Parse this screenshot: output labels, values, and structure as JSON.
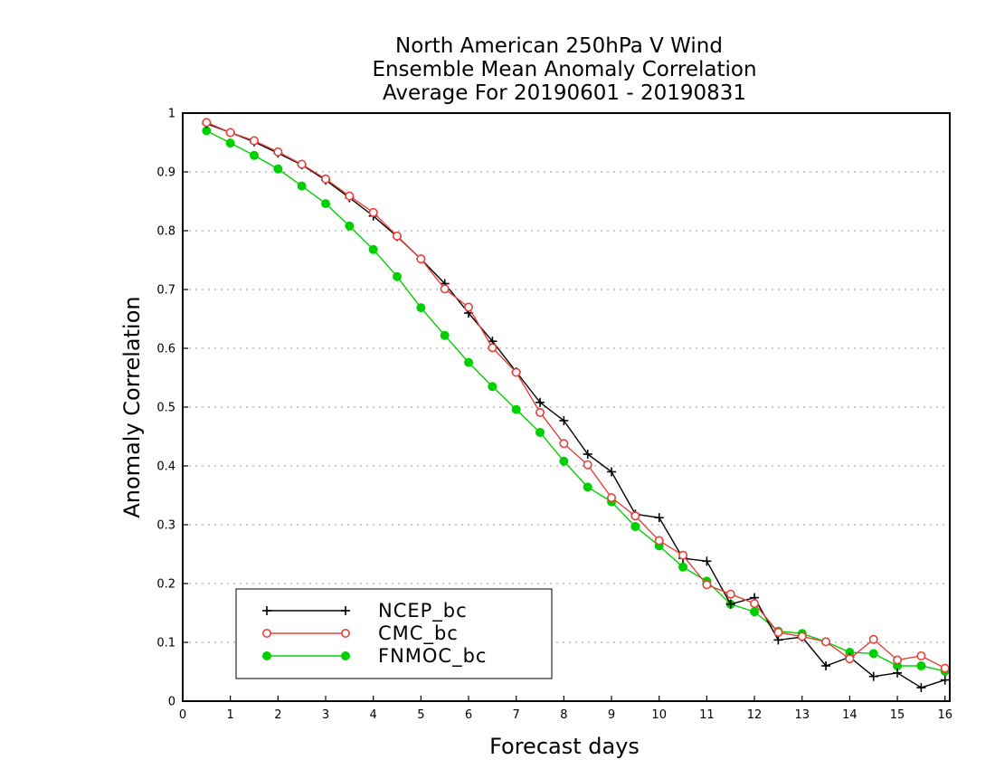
{
  "chart_data": {
    "type": "line",
    "title_lines": [
      "North American 250hPa V Wind",
      "Ensemble Mean Anomaly Correlation",
      "Average For 20190601 - 20190831"
    ],
    "xlabel": "Forecast days",
    "ylabel": "Anomaly Correlation",
    "xlim": [
      0,
      16.1
    ],
    "ylim": [
      0,
      1
    ],
    "xticks": [
      0,
      1,
      2,
      3,
      4,
      5,
      6,
      7,
      8,
      9,
      10,
      11,
      12,
      13,
      14,
      15,
      16
    ],
    "yticks": [
      0,
      0.1,
      0.2,
      0.3,
      0.4,
      0.5,
      0.6,
      0.7,
      0.8,
      0.9,
      1
    ],
    "ytick_labels": [
      "0",
      "0.1",
      "0.2",
      "0.3",
      "0.4",
      "0.5",
      "0.6",
      "0.7",
      "0.8",
      "0.9",
      "1"
    ],
    "grid": "horizontal dotted",
    "legend_position": "bottom-left",
    "x": [
      0.5,
      1,
      1.5,
      2,
      2.5,
      3,
      3.5,
      4,
      4.5,
      5,
      5.5,
      6,
      6.5,
      7,
      7.5,
      8,
      8.5,
      9,
      9.5,
      10,
      10.5,
      11,
      11.5,
      12,
      12.5,
      13,
      13.5,
      14,
      14.5,
      15,
      15.5,
      16
    ],
    "series": [
      {
        "name": "NCEP_bc",
        "color": "#000000",
        "marker": "plus",
        "values": [
          0.982,
          0.967,
          0.951,
          0.932,
          0.912,
          0.886,
          0.856,
          0.825,
          0.79,
          0.752,
          0.71,
          0.66,
          0.612,
          0.56,
          0.508,
          0.477,
          0.42,
          0.39,
          0.318,
          0.312,
          0.243,
          0.238,
          0.165,
          0.176,
          0.104,
          0.109,
          0.06,
          0.075,
          0.042,
          0.048,
          0.023,
          0.036
        ]
      },
      {
        "name": "CMC_bc",
        "color": "#e8403a",
        "marker": "open-circle",
        "values": [
          0.984,
          0.967,
          0.953,
          0.934,
          0.913,
          0.888,
          0.859,
          0.831,
          0.791,
          0.752,
          0.701,
          0.67,
          0.601,
          0.559,
          0.491,
          0.438,
          0.402,
          0.346,
          0.315,
          0.273,
          0.248,
          0.198,
          0.182,
          0.166,
          0.117,
          0.11,
          0.101,
          0.072,
          0.105,
          0.07,
          0.077,
          0.056
        ]
      },
      {
        "name": "FNMOC_bc",
        "color": "#00d000",
        "marker": "filled-circle",
        "values": [
          0.97,
          0.949,
          0.928,
          0.905,
          0.876,
          0.846,
          0.808,
          0.768,
          0.722,
          0.669,
          0.622,
          0.576,
          0.535,
          0.496,
          0.457,
          0.408,
          0.364,
          0.339,
          0.297,
          0.264,
          0.228,
          0.204,
          0.165,
          0.152,
          0.119,
          0.115,
          0.101,
          0.083,
          0.081,
          0.06,
          0.06,
          0.051
        ]
      }
    ]
  }
}
